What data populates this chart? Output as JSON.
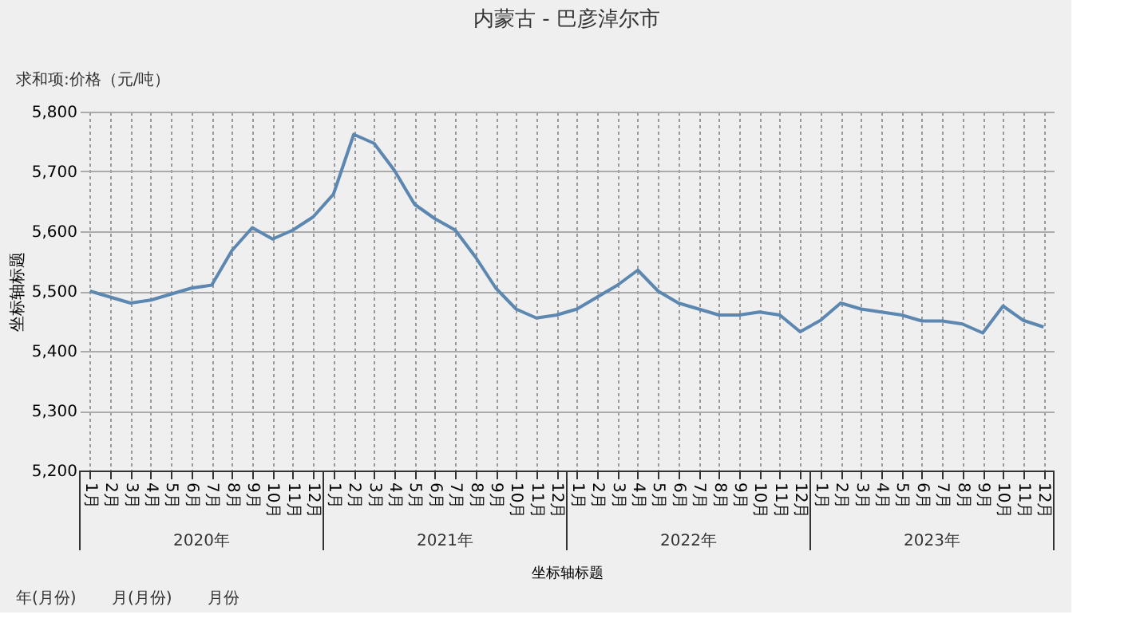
{
  "chart_data": {
    "type": "line",
    "title": "内蒙古 - 巴彦淖尔市",
    "xlabel": "坐标轴标题",
    "ylabel": "坐标轴标题",
    "categories": [
      "1月",
      "2月",
      "3月",
      "4月",
      "5月",
      "6月",
      "7月",
      "8月",
      "9月",
      "10月",
      "11月",
      "12月",
      "1月",
      "2月",
      "3月",
      "4月",
      "5月",
      "6月",
      "7月",
      "8月",
      "9月",
      "10月",
      "11月",
      "12月",
      "1月",
      "2月",
      "3月",
      "4月",
      "5月",
      "6月",
      "7月",
      "8月",
      "9月",
      "10月",
      "11月",
      "12月",
      "1月",
      "2月",
      "3月",
      "4月",
      "5月",
      "6月",
      "7月",
      "8月",
      "9月",
      "10月",
      "11月",
      "12月"
    ],
    "series": [
      {
        "color": "#5b87b0",
        "values": [
          5500,
          5490,
          5480,
          5485,
          5495,
          5505,
          5510,
          5568,
          5606,
          5587,
          5602,
          5624,
          5662,
          5762,
          5747,
          5702,
          5645,
          5621,
          5602,
          5557,
          5505,
          5470,
          5455,
          5460,
          5470,
          5490,
          5510,
          5535,
          5500,
          5480,
          5470,
          5460,
          5460,
          5465,
          5460,
          5432,
          5451,
          5480,
          5470,
          5465,
          5460,
          5450,
          5450,
          5445,
          5430,
          5475,
          5451,
          5440
        ]
      }
    ],
    "ylim": [
      5200,
      5800
    ],
    "yticks": [
      {
        "value": 5200,
        "label": "5,200"
      },
      {
        "value": 5300,
        "label": "5,300"
      },
      {
        "value": 5400,
        "label": "5,400"
      },
      {
        "value": 5500,
        "label": "5,500"
      },
      {
        "value": 5600,
        "label": "5,600"
      },
      {
        "value": 5700,
        "label": "5,700"
      },
      {
        "value": 5800,
        "label": "5,800"
      }
    ],
    "grid": true,
    "marker": "none",
    "line_style": "solid",
    "annotations": [
      "求和项:价格（元/吨）",
      "2020年",
      "2021年",
      "2022年",
      "2023年",
      "年(月份)",
      "月(月份)",
      "月份"
    ]
  }
}
